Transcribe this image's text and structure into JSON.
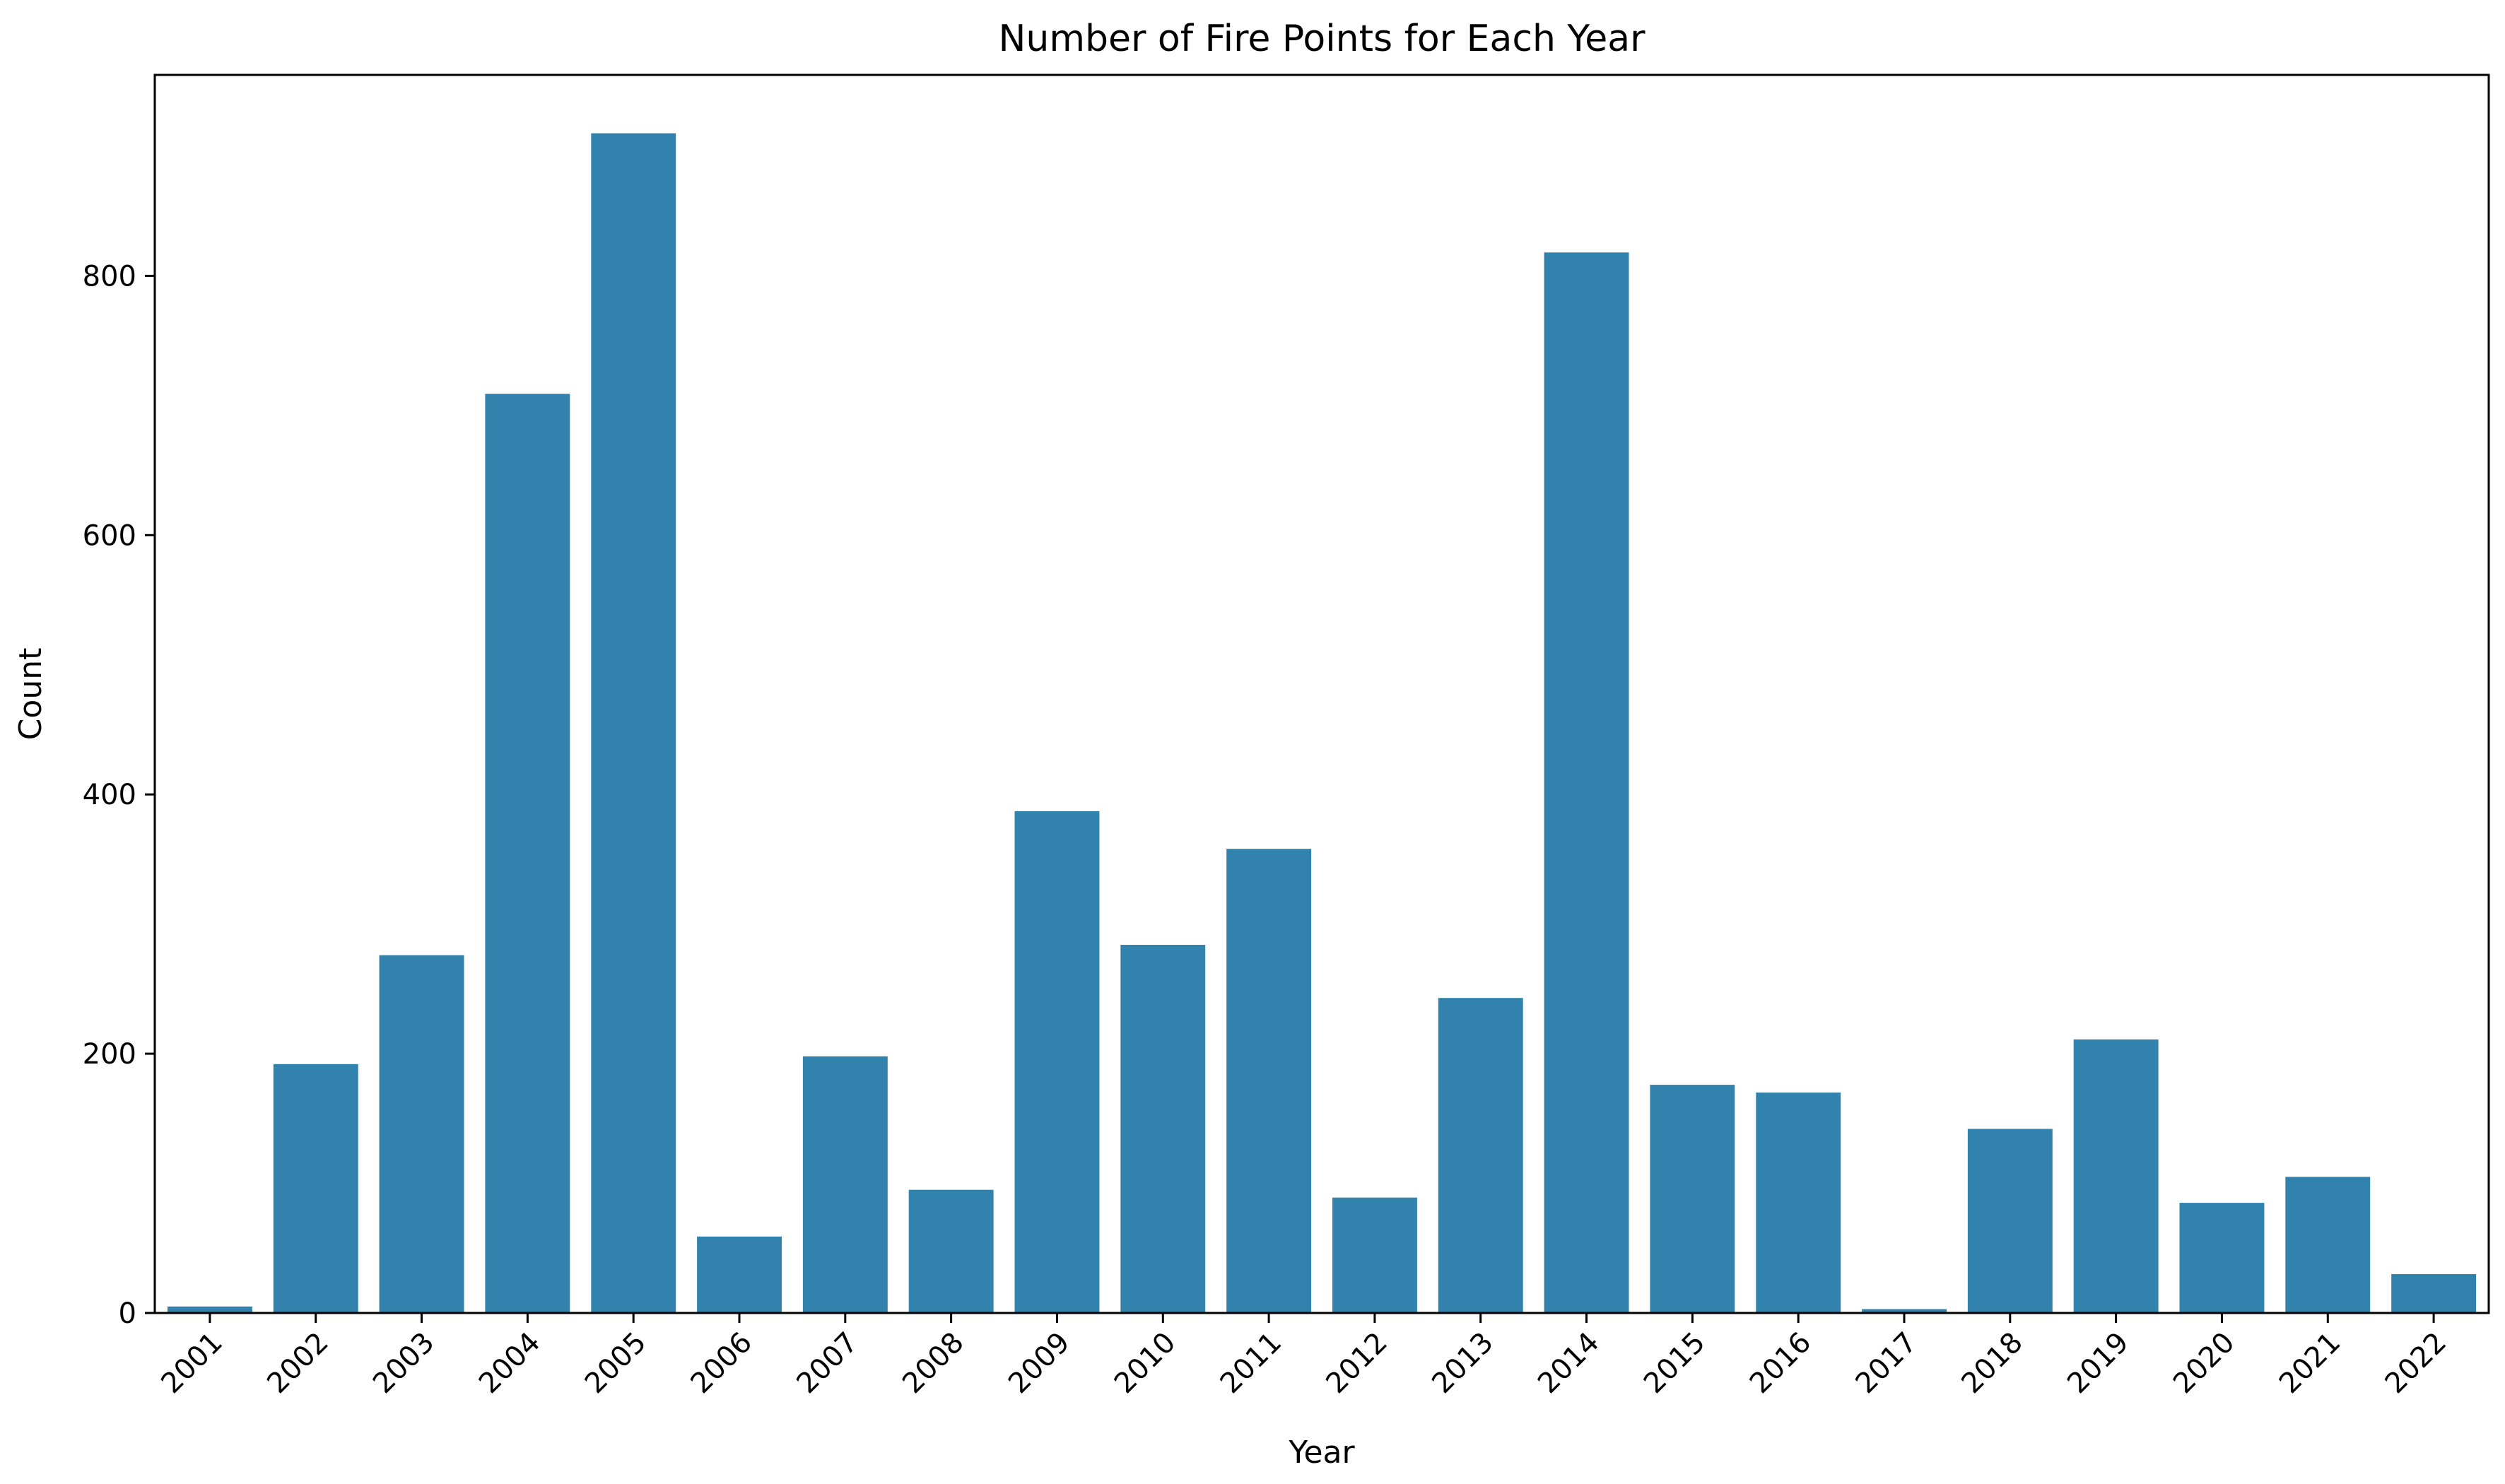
{
  "chart_data": {
    "type": "bar",
    "title": "Number of Fire Points for Each Year",
    "xlabel": "Year",
    "ylabel": "Count",
    "categories": [
      "2001",
      "2002",
      "2003",
      "2004",
      "2005",
      "2006",
      "2007",
      "2008",
      "2009",
      "2010",
      "2011",
      "2012",
      "2013",
      "2014",
      "2015",
      "2016",
      "2017",
      "2018",
      "2019",
      "2020",
      "2021",
      "2022"
    ],
    "values": [
      5,
      192,
      276,
      709,
      910,
      59,
      198,
      95,
      387,
      284,
      358,
      89,
      243,
      818,
      176,
      170,
      3,
      142,
      211,
      85,
      105,
      30
    ],
    "ylim": [
      0,
      955
    ],
    "yticks": [
      0,
      200,
      400,
      600,
      800
    ],
    "bar_color": "#3182ac",
    "grid": false,
    "legend": "none"
  }
}
